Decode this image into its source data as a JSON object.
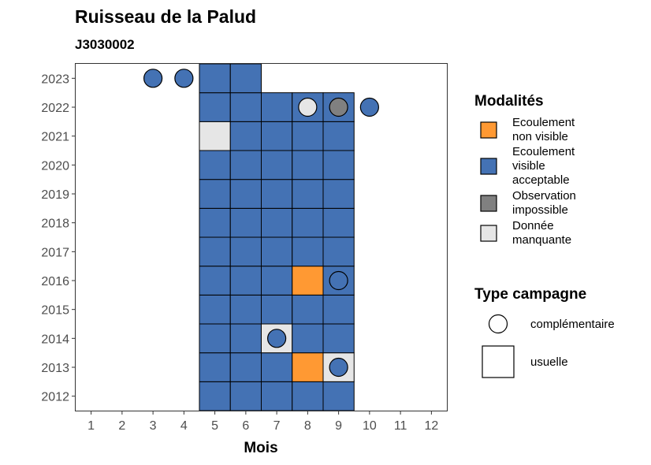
{
  "chart_data": {
    "type": "heatmap",
    "title": "Ruisseau de la Palud",
    "subtitle": "J3030002",
    "xlabel": "Mois",
    "ylabel": "",
    "x_ticks": [
      1,
      2,
      3,
      4,
      5,
      6,
      7,
      8,
      9,
      10,
      11,
      12
    ],
    "y_ticks": [
      2012,
      2013,
      2014,
      2015,
      2016,
      2017,
      2018,
      2019,
      2020,
      2021,
      2022,
      2023
    ],
    "xlim": [
      0.5,
      12.5
    ],
    "ylim": [
      2011.5,
      2023.5
    ],
    "grid": false,
    "legend_position": "right",
    "modalites": [
      {
        "key": "nv",
        "label_lines": [
          "Ecoulement",
          "non visible"
        ],
        "color": "#FF9933"
      },
      {
        "key": "va",
        "label_lines": [
          "Ecoulement",
          "visible",
          "acceptable"
        ],
        "color": "#4472B4"
      },
      {
        "key": "oi",
        "label_lines": [
          "Observation",
          "impossible"
        ],
        "color": "#808080"
      },
      {
        "key": "dm",
        "label_lines": [
          "Donnée",
          "manquante"
        ],
        "color": "#E6E6E6"
      }
    ],
    "type_campagne": [
      {
        "key": "complementaire",
        "label": "complémentaire",
        "shape": "circle"
      },
      {
        "key": "usuelle",
        "label": "usuelle",
        "shape": "square"
      }
    ],
    "legend_titles": {
      "modalites": "Modalités",
      "type_campagne": "Type campagne"
    },
    "usuelle": [
      {
        "year": 2012,
        "month": 5,
        "m": "va"
      },
      {
        "year": 2012,
        "month": 6,
        "m": "va"
      },
      {
        "year": 2012,
        "month": 7,
        "m": "va"
      },
      {
        "year": 2012,
        "month": 8,
        "m": "va"
      },
      {
        "year": 2012,
        "month": 9,
        "m": "va"
      },
      {
        "year": 2013,
        "month": 5,
        "m": "va"
      },
      {
        "year": 2013,
        "month": 6,
        "m": "va"
      },
      {
        "year": 2013,
        "month": 7,
        "m": "va"
      },
      {
        "year": 2013,
        "month": 8,
        "m": "nv"
      },
      {
        "year": 2013,
        "month": 9,
        "m": "dm"
      },
      {
        "year": 2014,
        "month": 5,
        "m": "va"
      },
      {
        "year": 2014,
        "month": 6,
        "m": "va"
      },
      {
        "year": 2014,
        "month": 7,
        "m": "dm"
      },
      {
        "year": 2014,
        "month": 8,
        "m": "va"
      },
      {
        "year": 2014,
        "month": 9,
        "m": "va"
      },
      {
        "year": 2015,
        "month": 5,
        "m": "va"
      },
      {
        "year": 2015,
        "month": 6,
        "m": "va"
      },
      {
        "year": 2015,
        "month": 7,
        "m": "va"
      },
      {
        "year": 2015,
        "month": 8,
        "m": "va"
      },
      {
        "year": 2015,
        "month": 9,
        "m": "va"
      },
      {
        "year": 2016,
        "month": 5,
        "m": "va"
      },
      {
        "year": 2016,
        "month": 6,
        "m": "va"
      },
      {
        "year": 2016,
        "month": 7,
        "m": "va"
      },
      {
        "year": 2016,
        "month": 8,
        "m": "nv"
      },
      {
        "year": 2016,
        "month": 9,
        "m": "va"
      },
      {
        "year": 2017,
        "month": 5,
        "m": "va"
      },
      {
        "year": 2017,
        "month": 6,
        "m": "va"
      },
      {
        "year": 2017,
        "month": 7,
        "m": "va"
      },
      {
        "year": 2017,
        "month": 8,
        "m": "va"
      },
      {
        "year": 2017,
        "month": 9,
        "m": "va"
      },
      {
        "year": 2018,
        "month": 5,
        "m": "va"
      },
      {
        "year": 2018,
        "month": 6,
        "m": "va"
      },
      {
        "year": 2018,
        "month": 7,
        "m": "va"
      },
      {
        "year": 2018,
        "month": 8,
        "m": "va"
      },
      {
        "year": 2018,
        "month": 9,
        "m": "va"
      },
      {
        "year": 2019,
        "month": 5,
        "m": "va"
      },
      {
        "year": 2019,
        "month": 6,
        "m": "va"
      },
      {
        "year": 2019,
        "month": 7,
        "m": "va"
      },
      {
        "year": 2019,
        "month": 8,
        "m": "va"
      },
      {
        "year": 2019,
        "month": 9,
        "m": "va"
      },
      {
        "year": 2020,
        "month": 5,
        "m": "va"
      },
      {
        "year": 2020,
        "month": 6,
        "m": "va"
      },
      {
        "year": 2020,
        "month": 7,
        "m": "va"
      },
      {
        "year": 2020,
        "month": 8,
        "m": "va"
      },
      {
        "year": 2020,
        "month": 9,
        "m": "va"
      },
      {
        "year": 2021,
        "month": 5,
        "m": "dm"
      },
      {
        "year": 2021,
        "month": 6,
        "m": "va"
      },
      {
        "year": 2021,
        "month": 7,
        "m": "va"
      },
      {
        "year": 2021,
        "month": 8,
        "m": "va"
      },
      {
        "year": 2021,
        "month": 9,
        "m": "va"
      },
      {
        "year": 2022,
        "month": 5,
        "m": "va"
      },
      {
        "year": 2022,
        "month": 6,
        "m": "va"
      },
      {
        "year": 2022,
        "month": 7,
        "m": "va"
      },
      {
        "year": 2022,
        "month": 8,
        "m": "va"
      },
      {
        "year": 2022,
        "month": 9,
        "m": "va"
      },
      {
        "year": 2023,
        "month": 5,
        "m": "va"
      },
      {
        "year": 2023,
        "month": 6,
        "m": "va"
      }
    ],
    "complementaire": [
      {
        "year": 2013,
        "month": 9,
        "m": "va"
      },
      {
        "year": 2014,
        "month": 7,
        "m": "va"
      },
      {
        "year": 2016,
        "month": 9,
        "m": "va"
      },
      {
        "year": 2022,
        "month": 8,
        "m": "dm"
      },
      {
        "year": 2022,
        "month": 9,
        "m": "oi"
      },
      {
        "year": 2022,
        "month": 10,
        "m": "va"
      },
      {
        "year": 2023,
        "month": 3,
        "m": "va"
      },
      {
        "year": 2023,
        "month": 4,
        "m": "va"
      }
    ]
  }
}
